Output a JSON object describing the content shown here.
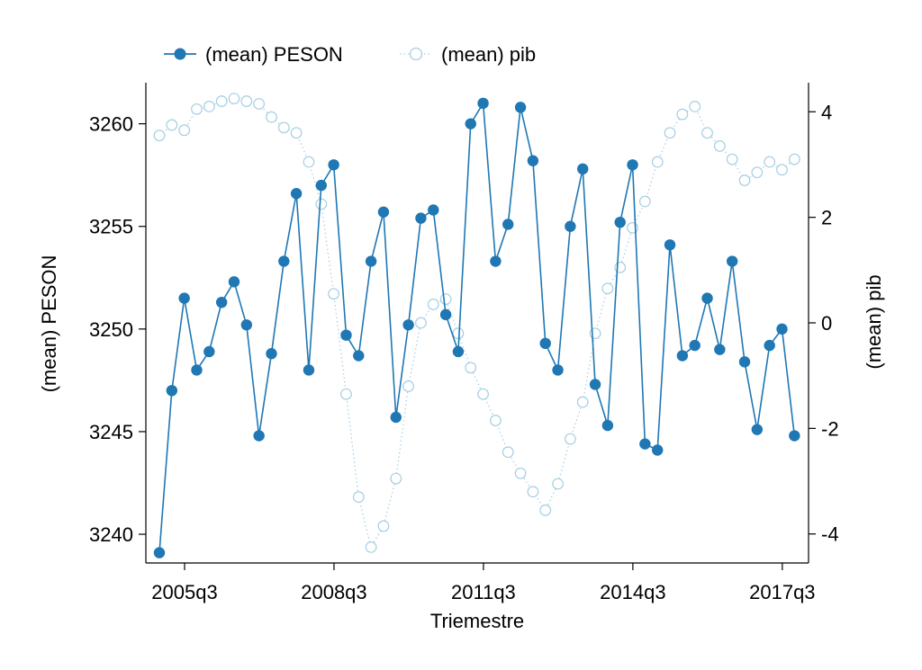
{
  "chart_data": {
    "type": "line",
    "xlabel": "Triemestre",
    "ylabel_left": "(mean) PESON",
    "ylabel_right": "(mean) pib",
    "x_tick_labels": [
      "2005q3",
      "2008q3",
      "2011q3",
      "2014q3",
      "2017q3"
    ],
    "x_tick_index": [
      0,
      12,
      24,
      36,
      48
    ],
    "y_left_ticks": [
      3240,
      3245,
      3250,
      3255,
      3260
    ],
    "y_left_range": [
      3238.6,
      3262.0
    ],
    "y_right_ticks": [
      -4,
      -2,
      0,
      2,
      4
    ],
    "y_right_range": [
      -4.55,
      4.55
    ],
    "legend_position": "top-left",
    "x": [
      "2005q3",
      "2005q4",
      "2006q1",
      "2006q2",
      "2006q3",
      "2006q4",
      "2007q1",
      "2007q2",
      "2007q3",
      "2007q4",
      "2008q1",
      "2008q2",
      "2008q3",
      "2008q4",
      "2009q1",
      "2009q2",
      "2009q3",
      "2009q4",
      "2010q1",
      "2010q2",
      "2010q3",
      "2010q4",
      "2011q1",
      "2011q2",
      "2011q3",
      "2011q4",
      "2012q1",
      "2012q2",
      "2012q3",
      "2012q4",
      "2013q1",
      "2013q2",
      "2013q3",
      "2013q4",
      "2014q1",
      "2014q2",
      "2014q3",
      "2014q4",
      "2015q1",
      "2015q2",
      "2015q3",
      "2015q4",
      "2016q1",
      "2016q2",
      "2016q3",
      "2016q4",
      "2017q1",
      "2017q2",
      "2017q3",
      "2017q4",
      "2018q1",
      "2018q2"
    ],
    "series": [
      {
        "name": "(mean) PESON",
        "axis": "left",
        "color": "#1f77b4",
        "style": "solid-filled-markers",
        "values": [
          3239.1,
          3247.0,
          3251.5,
          3248.0,
          3248.9,
          3251.3,
          3252.3,
          3250.2,
          3244.8,
          3248.8,
          3253.3,
          3256.6,
          3248.0,
          3257.0,
          3258.0,
          3249.7,
          3248.7,
          3253.3,
          3255.7,
          3245.7,
          3250.2,
          3255.4,
          3255.8,
          3250.7,
          3248.9,
          3260.0,
          3261.0,
          3253.3,
          3255.1,
          3260.8,
          3258.2,
          3249.3,
          3248.0,
          3255.0,
          3257.8,
          3247.3,
          3245.3,
          3255.2,
          3258.0,
          3244.4,
          3244.1,
          3254.1,
          3248.7,
          3249.2,
          3251.5,
          3249.0,
          3253.3,
          3248.4,
          3245.1,
          3249.2,
          3250.0,
          3244.8
        ]
      },
      {
        "name": "(mean) pib",
        "axis": "right",
        "color": "#a6cee3",
        "style": "dotted-hollow-markers",
        "values": [
          3.55,
          3.75,
          3.65,
          4.05,
          4.1,
          4.2,
          4.25,
          4.2,
          4.15,
          3.9,
          3.7,
          3.6,
          3.05,
          2.25,
          0.55,
          -1.35,
          -3.3,
          -4.25,
          -3.85,
          -2.95,
          -1.2,
          0.0,
          0.35,
          0.45,
          -0.2,
          -0.85,
          -1.35,
          -1.85,
          -2.45,
          -2.85,
          -3.2,
          -3.55,
          -3.05,
          -2.2,
          -1.5,
          -0.2,
          0.65,
          1.05,
          1.8,
          2.3,
          3.05,
          3.6,
          3.95,
          4.1,
          3.6,
          3.35,
          3.1,
          2.7,
          2.85,
          3.05,
          2.9,
          3.1
        ]
      }
    ]
  }
}
